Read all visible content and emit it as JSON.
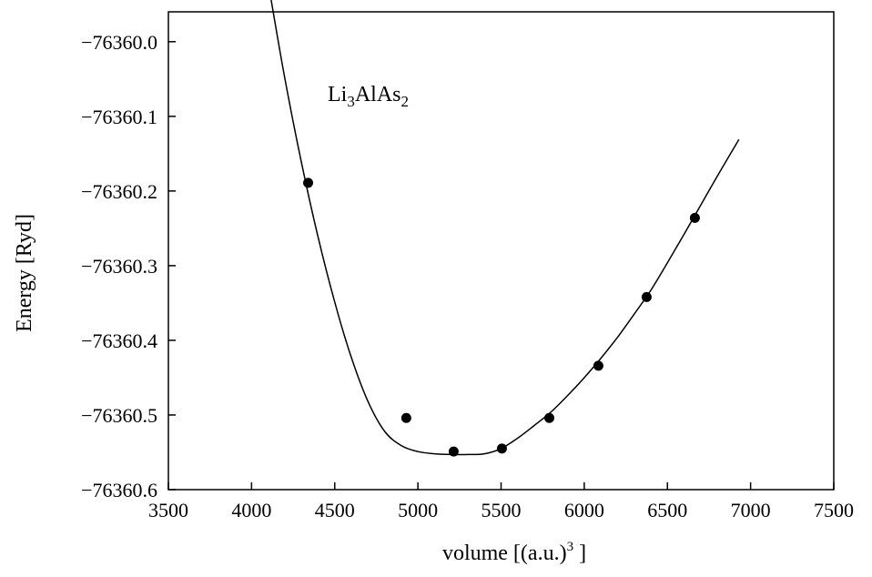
{
  "chart_data": {
    "type": "scatter",
    "annotation": {
      "base1": "Li",
      "sub1": "3",
      "base2": "AlAs",
      "sub2": "2"
    },
    "xlabel": {
      "text": "volume [(a.u.)",
      "sup": "3",
      "close": "]"
    },
    "ylabel": "Energy [Ryd]",
    "xlim": [
      3500,
      7500
    ],
    "ylim": [
      -76360.6,
      -75359.96
    ],
    "y_display_range": [
      -76360.6,
      -76359.96
    ],
    "x_ticks": [
      3500,
      4000,
      4500,
      5000,
      5500,
      6000,
      6500,
      7000,
      7500
    ],
    "x_tick_labels": [
      "3500",
      "4000",
      "4500",
      "5000",
      "5500",
      "6000",
      "6500",
      "7000",
      "7500"
    ],
    "y_ticks": [
      -76360.0,
      -76360.1,
      -76360.2,
      -76360.3,
      -76360.4,
      -76360.5,
      -76360.6
    ],
    "y_tick_labels": [
      "−76360.0",
      "−76360.1",
      "−76360.2",
      "−76360.3",
      "−76360.4",
      "−76360.5",
      "−76360.6"
    ],
    "points": {
      "x": [
        4340,
        4930,
        5215,
        5505,
        5790,
        6085,
        6375,
        6665
      ],
      "y": [
        -76360.189,
        -76360.504,
        -76360.549,
        -76360.545,
        -76360.504,
        -76360.434,
        -76360.342,
        -76360.236
      ]
    },
    "fit_curve": {
      "x": [
        4110,
        4200,
        4300,
        4400,
        4500,
        4600,
        4700,
        4800,
        4900,
        5000,
        5100,
        5200,
        5300,
        5400,
        5500,
        5600,
        5700,
        5800,
        5900,
        6000,
        6100,
        6200,
        6300,
        6400,
        6500,
        6600,
        6700,
        6800,
        6930
      ],
      "y": [
        -76359.934,
        -76360.049,
        -76360.162,
        -76360.262,
        -76360.349,
        -76360.423,
        -76360.482,
        -76360.522,
        -76360.541,
        -76360.549,
        -76360.552,
        -76360.553,
        -76360.553,
        -76360.552,
        -76360.545,
        -76360.531,
        -76360.514,
        -76360.496,
        -76360.474,
        -76360.45,
        -76360.424,
        -76360.396,
        -76360.365,
        -76360.333,
        -76360.296,
        -76360.258,
        -76360.219,
        -76360.18,
        -76360.131
      ]
    },
    "colors": {
      "line": "#000000",
      "marker": "#000000",
      "frame": "#000000"
    },
    "grid": false,
    "legend": "none"
  }
}
